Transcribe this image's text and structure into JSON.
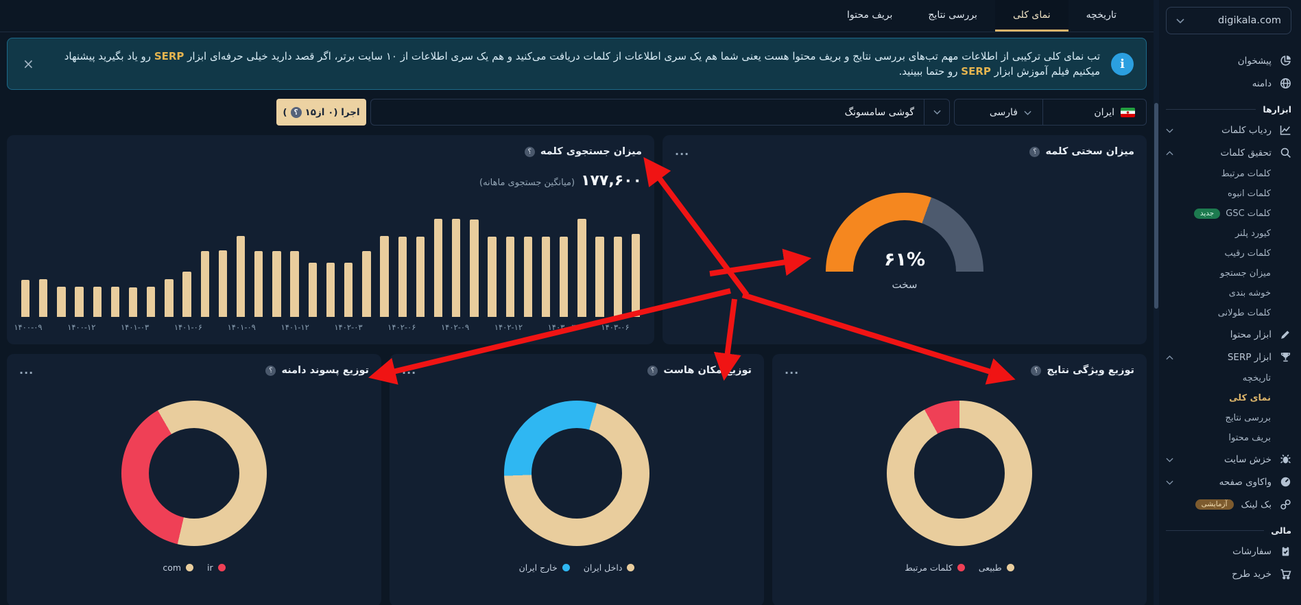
{
  "colors": {
    "accent_gold": "#d9b36a",
    "bar_beige": "#e9cd9d",
    "crimson": "#ef4056",
    "blue": "#2fb7f2",
    "orange": "#f5871f",
    "slate": "#4d5a6e",
    "arrow_red": "#f01414"
  },
  "sidebar": {
    "domain": "digikala.com",
    "sections": [
      {
        "title": "",
        "items": [
          {
            "icon": "pie-chart",
            "label": "پیشخوان"
          },
          {
            "icon": "globe",
            "label": "دامنه"
          }
        ]
      },
      {
        "title": "ابزارها",
        "items": [
          {
            "icon": "line-chart",
            "label": "ردیاب کلمات",
            "chevron": "down"
          },
          {
            "icon": "search",
            "label": "تحقیق کلمات",
            "chevron": "up",
            "children": [
              {
                "label": "کلمات مرتبط"
              },
              {
                "label": "کلمات انبوه"
              },
              {
                "label": "کلمات GSC",
                "badge": {
                  "text": "جدید",
                  "type": "green"
                }
              },
              {
                "label": "کیورد پلنر"
              },
              {
                "label": "کلمات رقیب"
              },
              {
                "label": "میزان جستجو"
              },
              {
                "label": "خوشه بندی"
              },
              {
                "label": "کلمات طولانی"
              }
            ]
          },
          {
            "icon": "pencil",
            "label": "ابزار محتوا"
          },
          {
            "icon": "trophy",
            "label": "ابزار SERP",
            "chevron": "up",
            "children": [
              {
                "label": "تاریخچه"
              },
              {
                "label": "نمای کلی",
                "active": true
              },
              {
                "label": "بررسی نتایج"
              },
              {
                "label": "بریف محتوا"
              }
            ]
          },
          {
            "icon": "bug",
            "label": "خزش سایت",
            "chevron": "down"
          },
          {
            "icon": "speedometer",
            "label": "واکاوی صفحه",
            "chevron": "down"
          },
          {
            "icon": "link",
            "label": "بک لینک",
            "badge": {
              "text": "آزمایشی",
              "type": "brown"
            }
          }
        ]
      },
      {
        "title": "مالی",
        "items": [
          {
            "icon": "clipboard",
            "label": "سفارشات"
          },
          {
            "icon": "cart",
            "label": "خرید طرح"
          }
        ]
      }
    ]
  },
  "tabs": [
    {
      "label": "تاریخچه",
      "active": false
    },
    {
      "label": "نمای کلی",
      "active": true
    },
    {
      "label": "بررسی نتایج",
      "active": false
    },
    {
      "label": "بریف محتوا",
      "active": false
    }
  ],
  "banner": {
    "close": "×",
    "info_char": "i",
    "text_pre": "تب نمای کلی ترکیبی از اطلاعات مهم تب‌های بررسی نتایج و بریف محتوا هست یعنی شما هم یک سری اطلاعات از کلمات دریافت می‌کنید و هم یک سری اطلاعات از ۱۰ سایت برتر، اگر قصد دارید خیلی حرفه‌ای ابزار ",
    "serp1": "SERP",
    "text_mid": " رو یاد بگیرید پیشنهاد میکنیم فیلم آموزش ابزار ",
    "serp2": "SERP",
    "text_post": " رو حتما ببینید."
  },
  "controls": {
    "country": "ایران",
    "language": "فارسی",
    "query": "گوشی سامسونگ",
    "run_label": "اجرا (۰ از۱۵",
    "run_close": ")",
    "help_char": "؟"
  },
  "cards": {
    "menu_dots": "...",
    "volume": {
      "title": "میزان جستجوی کلمه",
      "stat_value": "۱۷۷,۶۰۰",
      "stat_caption": "(میانگین جستجوی ماهانه)"
    },
    "difficulty": {
      "title": "میزان سختی کلمه",
      "percent_label": "۶۱%",
      "caption": "سخت"
    },
    "tld": {
      "title": "توزیع پسوند دامنه"
    },
    "host": {
      "title": "توزیع مکان هاست"
    },
    "features": {
      "title": "توزیع ویژگی نتایج"
    }
  },
  "chart_data": [
    {
      "type": "bar",
      "title": "میزان جستجوی کلمه",
      "ylabel": "جستجوی ماهانه",
      "ylim": [
        0,
        280000
      ],
      "grid": false,
      "bar_color": "#e9cd9d",
      "values": [
        101000,
        103000,
        83000,
        83000,
        83000,
        83000,
        81000,
        83000,
        103000,
        123000,
        180000,
        182000,
        220000,
        180000,
        180000,
        179000,
        147000,
        147000,
        147000,
        180000,
        220000,
        219000,
        219000,
        267000,
        267000,
        266000,
        219000,
        219000,
        219000,
        219000,
        219000,
        267000,
        219000,
        219000,
        225000
      ],
      "tick_labels": [
        "۱۴۰۰-۰۹",
        "۱۴۰۰-۱۲",
        "۱۴۰۱-۰۳",
        "۱۴۰۱-۰۶",
        "۱۴۰۱-۰۹",
        "۱۴۰۱-۱۲",
        "۱۴۰۲-۰۳",
        "۱۴۰۲-۰۶",
        "۱۴۰۲-۰۹",
        "۱۴۰۲-۱۲",
        "۱۴۰۳-۰۳",
        "۱۴۰۳-۰۶"
      ],
      "tick_every": 3,
      "mean_monthly_search": 177600
    },
    {
      "type": "gauge",
      "title": "میزان سختی کلمه",
      "value": 61,
      "max": 100,
      "value_label": "۶۱%",
      "caption": "سخت",
      "color": "#f5871f",
      "track_color": "#4d5a6e"
    },
    {
      "type": "donut",
      "title": "توزیع پسوند دامنه",
      "slices": [
        {
          "name": "com",
          "value": 62,
          "color": "#e9cd9d"
        },
        {
          "name": "ir",
          "value": 38,
          "color": "#ef4056"
        }
      ]
    },
    {
      "type": "donut",
      "title": "توزیع مکان هاست",
      "slices": [
        {
          "name": "داخل ایران",
          "value": 70,
          "color": "#e9cd9d"
        },
        {
          "name": "خارج ایران",
          "value": 30,
          "color": "#2fb7f2"
        }
      ]
    },
    {
      "type": "donut",
      "title": "توزیع ویژگی نتایج",
      "slices": [
        {
          "name": "طبیعی",
          "value": 92,
          "color": "#e9cd9d"
        },
        {
          "name": "کلمات مرتبط",
          "value": 8,
          "color": "#ef4056"
        }
      ]
    }
  ]
}
